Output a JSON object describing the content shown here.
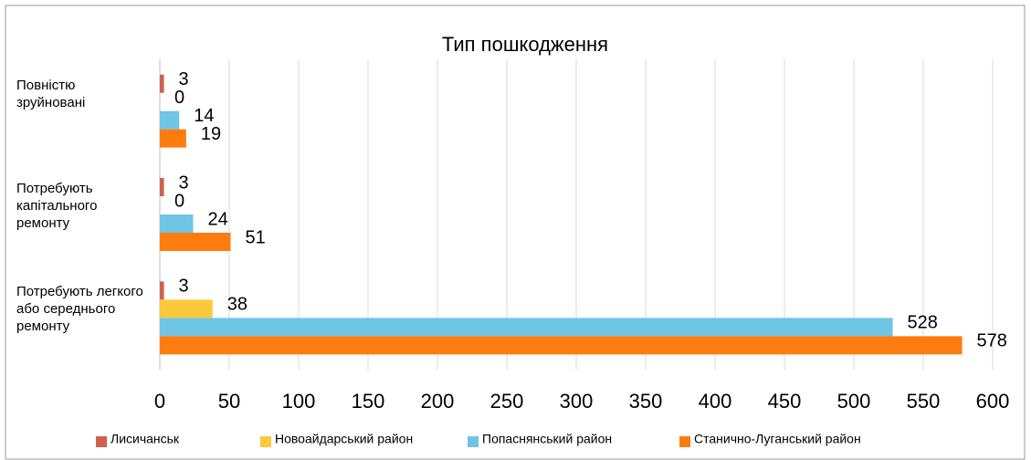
{
  "chart_data": {
    "type": "hbar",
    "title": "Тип пошкодження",
    "categories": [
      "Повністю зруйновані",
      "Потребують капітального ремонту",
      "Потребують легкого або середнього ремонту"
    ],
    "series": [
      {
        "name": "Лисичанськ",
        "color": "#d0604d",
        "values": [
          3,
          3,
          3
        ]
      },
      {
        "name": "Новоайдарський район",
        "color": "#fbc93a",
        "values": [
          0,
          0,
          38
        ]
      },
      {
        "name": "Попаснянський район",
        "color": "#70c4e6",
        "values": [
          14,
          24,
          528
        ]
      },
      {
        "name": "Станично-Луганський район",
        "color": "#fd7c0f",
        "values": [
          19,
          51,
          578
        ]
      }
    ],
    "xlim": [
      0,
      600
    ],
    "xticks": [
      0,
      50,
      100,
      150,
      200,
      250,
      300,
      350,
      400,
      450,
      500,
      550,
      600
    ],
    "grid": true,
    "legend": "bottom"
  }
}
